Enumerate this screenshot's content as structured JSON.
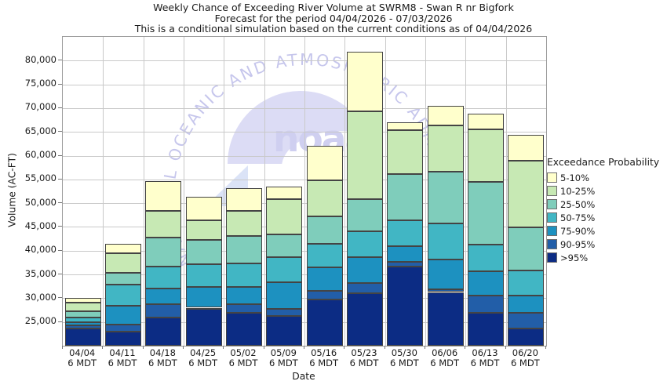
{
  "watermark": {
    "ring_text": "NATIONAL OCEANIC AND ATMOSPHERIC ADMINISTRATION",
    "wordmark": "noaa"
  },
  "legend": {
    "title": "Exceedance Probability"
  },
  "chart_data": {
    "type": "bar",
    "stacked": true,
    "title": "Weekly Chance of Exceeding River Volume at SWRM8 - Swan R nr Bigfork",
    "subtitle": "Forecast for the period 04/04/2026 - 07/03/2026",
    "note": "This is a conditional simulation based on the current conditions as of 04/04/2026",
    "xlabel": "Date",
    "ylabel": "Volume (AC-FT)",
    "ylim": [
      20000,
      85000
    ],
    "yticks": [
      25000,
      30000,
      35000,
      40000,
      45000,
      50000,
      55000,
      60000,
      65000,
      70000,
      75000,
      80000
    ],
    "x_sublabel": "6 MDT",
    "series": [
      {
        "name": "5-10%",
        "color": "#ffffcc"
      },
      {
        "name": "10-25%",
        "color": "#c7e9b4"
      },
      {
        "name": "25-50%",
        "color": "#7fcdbb"
      },
      {
        "name": "50-75%",
        "color": "#41b6c4"
      },
      {
        "name": "75-90%",
        "color": "#1d91c0"
      },
      {
        "name": "90-95%",
        "color": "#225ea8"
      },
      {
        "name": ">95%",
        "color": "#0c2c84"
      }
    ],
    "threshold_keys": [
      "p5",
      "p10",
      "p25",
      "p50",
      "p75",
      "p90",
      "p95"
    ],
    "bars": [
      {
        "date": "04/04",
        "thresholds": {
          "p5": 30000,
          "p10": 29000,
          "p25": 27300,
          "p50": 26000,
          "p75": 25000,
          "p90": 24300,
          "p95": 23700
        }
      },
      {
        "date": "04/11",
        "thresholds": {
          "p5": 41500,
          "p10": 39400,
          "p25": 35300,
          "p50": 32800,
          "p75": 28400,
          "p90": 24400,
          "p95": 22900
        }
      },
      {
        "date": "04/18",
        "thresholds": {
          "p5": 54600,
          "p10": 48300,
          "p25": 42700,
          "p50": 36600,
          "p75": 32000,
          "p90": 28800,
          "p95": 25900
        }
      },
      {
        "date": "04/25",
        "thresholds": {
          "p5": 51300,
          "p10": 46400,
          "p25": 42300,
          "p50": 37200,
          "p75": 32400,
          "p90": 28000,
          "p95": 27700
        }
      },
      {
        "date": "05/02",
        "thresholds": {
          "p5": 53200,
          "p10": 48300,
          "p25": 43100,
          "p50": 37300,
          "p75": 32400,
          "p90": 28700,
          "p95": 27000
        }
      },
      {
        "date": "05/09",
        "thresholds": {
          "p5": 53500,
          "p10": 50800,
          "p25": 43400,
          "p50": 38600,
          "p75": 33400,
          "p90": 27800,
          "p95": 26200
        }
      },
      {
        "date": "05/16",
        "thresholds": {
          "p5": 62000,
          "p10": 54800,
          "p25": 47200,
          "p50": 41500,
          "p75": 36500,
          "p90": 31600,
          "p95": 29700
        }
      },
      {
        "date": "05/23",
        "thresholds": {
          "p5": 81800,
          "p10": 69300,
          "p25": 50900,
          "p50": 44100,
          "p75": 38700,
          "p90": 33200,
          "p95": 31000
        }
      },
      {
        "date": "05/30",
        "thresholds": {
          "p5": 67000,
          "p10": 65300,
          "p25": 56200,
          "p50": 46400,
          "p75": 41000,
          "p90": 37700,
          "p95": 36700
        }
      },
      {
        "date": "06/06",
        "thresholds": {
          "p5": 70400,
          "p10": 66300,
          "p25": 56600,
          "p50": 45700,
          "p75": 38100,
          "p90": 31900,
          "p95": 31300
        }
      },
      {
        "date": "06/13",
        "thresholds": {
          "p5": 68900,
          "p10": 65500,
          "p25": 54500,
          "p50": 41300,
          "p75": 35700,
          "p90": 30500,
          "p95": 26900
        }
      },
      {
        "date": "06/20",
        "thresholds": {
          "p5": 64400,
          "p10": 58900,
          "p25": 44900,
          "p50": 35800,
          "p75": 30500,
          "p90": 27000,
          "p95": 23700
        }
      }
    ]
  }
}
